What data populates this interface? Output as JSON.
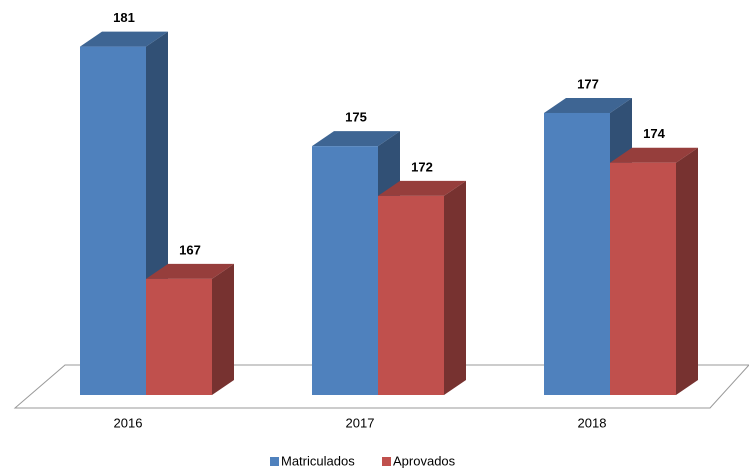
{
  "chart_data": {
    "type": "bar3d",
    "categories": [
      "2016",
      "2017",
      "2018"
    ],
    "series": [
      {
        "name": "Matriculados",
        "color": "#4f81bd",
        "values": [
          181,
          175,
          177
        ]
      },
      {
        "name": "Aprovados",
        "color": "#c0504d",
        "values": [
          167,
          172,
          174
        ]
      }
    ],
    "ylim": [
      160,
      182
    ],
    "legend": "bottom"
  }
}
